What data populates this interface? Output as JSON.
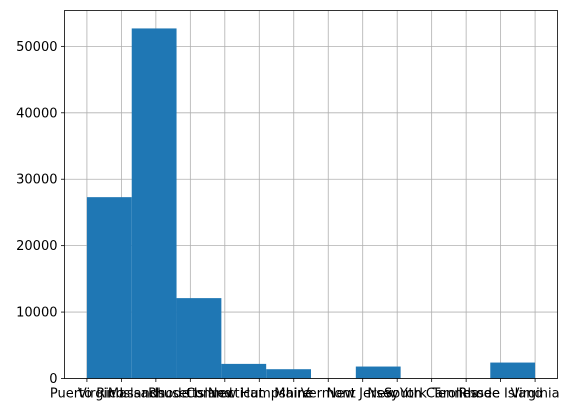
{
  "chart_data": {
    "type": "bar",
    "title": "",
    "xlabel": "",
    "ylabel": "",
    "categories": [
      "Puerto Rico",
      "Virgin Islands",
      "Massachusetts",
      "Rhode Island",
      "Connecticut",
      "New Hampshire",
      "Maine",
      "Vermont",
      "New Jersey",
      "New York",
      "South Carolina",
      "Tennessee",
      "Rhode Island",
      "Virginia"
    ],
    "category_positions": [
      0,
      1,
      2,
      3,
      4,
      5,
      6,
      7,
      8,
      9,
      10,
      11,
      12,
      13
    ],
    "bins": [
      {
        "from": 0.0,
        "to": 1.3,
        "value": 27300
      },
      {
        "from": 1.3,
        "to": 2.6,
        "value": 52700
      },
      {
        "from": 2.6,
        "to": 3.9,
        "value": 12100
      },
      {
        "from": 3.9,
        "to": 5.2,
        "value": 2200
      },
      {
        "from": 5.2,
        "to": 6.5,
        "value": 1400
      },
      {
        "from": 6.5,
        "to": 7.8,
        "value": 0
      },
      {
        "from": 7.8,
        "to": 9.1,
        "value": 1800
      },
      {
        "from": 9.1,
        "to": 10.4,
        "value": 0
      },
      {
        "from": 10.4,
        "to": 11.7,
        "value": 0
      },
      {
        "from": 11.7,
        "to": 13.0,
        "value": 2400
      }
    ],
    "yticks": [
      0,
      10000,
      20000,
      30000,
      40000,
      50000
    ],
    "ylim": [
      0,
      55400
    ],
    "xlim": [
      -0.65,
      13.65
    ],
    "grid": true,
    "bar_color": "#1f77b4",
    "grid_color": "#b0b0b0"
  }
}
